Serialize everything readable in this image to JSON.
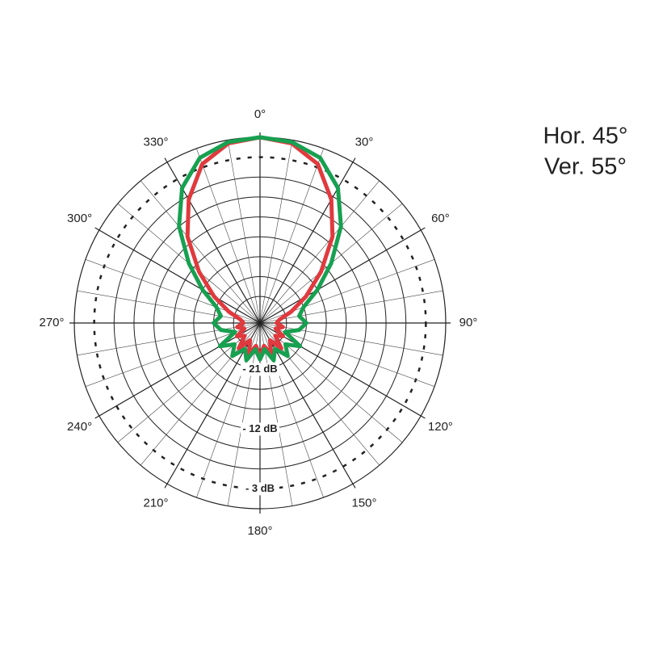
{
  "chart_data": {
    "type": "polar",
    "theta": [
      0,
      10,
      20,
      30,
      40,
      50,
      60,
      70,
      80,
      90,
      100,
      110,
      120,
      130,
      140,
      150,
      160,
      170,
      180,
      190,
      200,
      210,
      220,
      230,
      240,
      250,
      260,
      270,
      280,
      290,
      300,
      310,
      320,
      330,
      340,
      350
    ],
    "series": [
      {
        "name": "Hor. 45°",
        "color": "#e03a3e",
        "values": [
          0,
          -0.5,
          -2.5,
          -6.5,
          -11,
          -16,
          -20,
          -23,
          -25,
          -25.5,
          -24.5,
          -25.5,
          -24,
          -25,
          -23,
          -25,
          -23,
          -24.5,
          -23,
          -24.5,
          -23,
          -25,
          -23,
          -25,
          -24,
          -25.5,
          -24.5,
          -25.5,
          -25,
          -23,
          -20,
          -16,
          -11,
          -6.5,
          -2.5,
          -0.5
        ]
      },
      {
        "name": "Ver. 55°",
        "color": "#17a050",
        "values": [
          0,
          -0.3,
          -1.5,
          -4.5,
          -9,
          -14,
          -18,
          -21,
          -22,
          -21,
          -22,
          -24,
          -21,
          -23,
          -21.5,
          -23.5,
          -22,
          -24,
          -22.5,
          -24,
          -22,
          -23.5,
          -21.5,
          -23,
          -21,
          -24,
          -22,
          -21,
          -22,
          -21,
          -18,
          -14,
          -9,
          -4.5,
          -1.5,
          -0.3
        ]
      }
    ],
    "rlim": [
      -28,
      0
    ],
    "rgrid": [
      -3,
      -6,
      -9,
      -12,
      -15,
      -18,
      -21,
      -24
    ],
    "dashed_ring": -3,
    "rlabels": [
      {
        "value": -3,
        "label": "- 3 dB"
      },
      {
        "value": -12,
        "label": "- 12 dB"
      },
      {
        "value": -21,
        "label": "- 21 dB"
      }
    ],
    "thetaticks": [
      {
        "value": 0,
        "label": "0°"
      },
      {
        "value": 30,
        "label": "30°"
      },
      {
        "value": 60,
        "label": "60°"
      },
      {
        "value": 90,
        "label": "90°"
      },
      {
        "value": 120,
        "label": "120°"
      },
      {
        "value": 150,
        "label": "150°"
      },
      {
        "value": 180,
        "label": "180°"
      },
      {
        "value": 210,
        "label": "210°"
      },
      {
        "value": 240,
        "label": "240°"
      },
      {
        "value": 270,
        "label": "270°"
      },
      {
        "value": 300,
        "label": "300°"
      },
      {
        "value": 330,
        "label": "330°"
      }
    ]
  }
}
